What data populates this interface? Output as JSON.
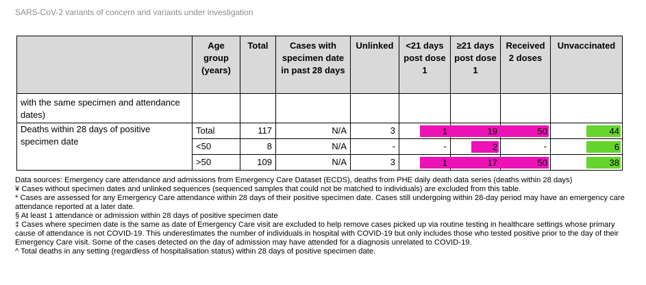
{
  "doc_title": "SARS-CoV-2 variants of concern and variants under investigation",
  "colors": {
    "magenta": "#ec12b6",
    "green": "#66d42c",
    "header_bg": "#d9d9d9"
  },
  "table": {
    "headers": {
      "age_group": "Age group (years)",
      "total": "Total",
      "cases_recent": "Cases with specimen date in past 28 days",
      "unlinked": "Unlinked",
      "lt21": "<21 days post dose 1",
      "ge21": "≥21 days post dose 1",
      "two_doses": "Received 2 doses",
      "unvaccinated": "Unvaccinated"
    },
    "continued_label": "with the same specimen and attendance dates)",
    "deaths_label": "Deaths within 28 days of positive specimen date",
    "rows": [
      {
        "age": "Total",
        "total": "117",
        "recent": "N/A",
        "unlinked": "3",
        "lt21": "1",
        "ge21": "19",
        "two": "50",
        "unvax": "44"
      },
      {
        "age": "<50",
        "total": "8",
        "recent": "N/A",
        "unlinked": "-",
        "lt21": "-",
        "ge21": "2",
        "two": "-",
        "unvax": "6"
      },
      {
        "age": ">50",
        "total": "109",
        "recent": "N/A",
        "unlinked": "3",
        "lt21": "1",
        "ge21": "17",
        "two": "50",
        "unvax": "38"
      }
    ]
  },
  "notes": [
    "Data sources: Emergency care attendance and admissions from Emergency Care Dataset (ECDS), deaths from PHE daily death data series (deaths within 28 days)",
    "¥ Cases without specimen dates and unlinked sequences (sequenced samples that could not be matched to individuals) are excluded from this table.",
    "* Cases are assessed for any Emergency Care attendance within 28 days of their positive specimen date. Cases still undergoing within 28-day period may have an emergency care attendance reported at a later date.",
    "§ At least 1 attendance or admission within 28 days of positive specimen date",
    "‡ Cases where specimen date is the same as date of Emergency Care visit are excluded to help remove cases picked up via routine testing in healthcare settings whose primary cause of attendance is not COVID-19. This underestimates the number of individuals in hospital with COVID-19 but only includes those who tested positive prior to the day of their Emergency Care visit. Some of the cases detected on the day of admission may have attended for a diagnosis unrelated to COVID-19.",
    "^ Total deaths in any setting (regardless of hospitalisation status) within 28 days of positive specimen date."
  ]
}
